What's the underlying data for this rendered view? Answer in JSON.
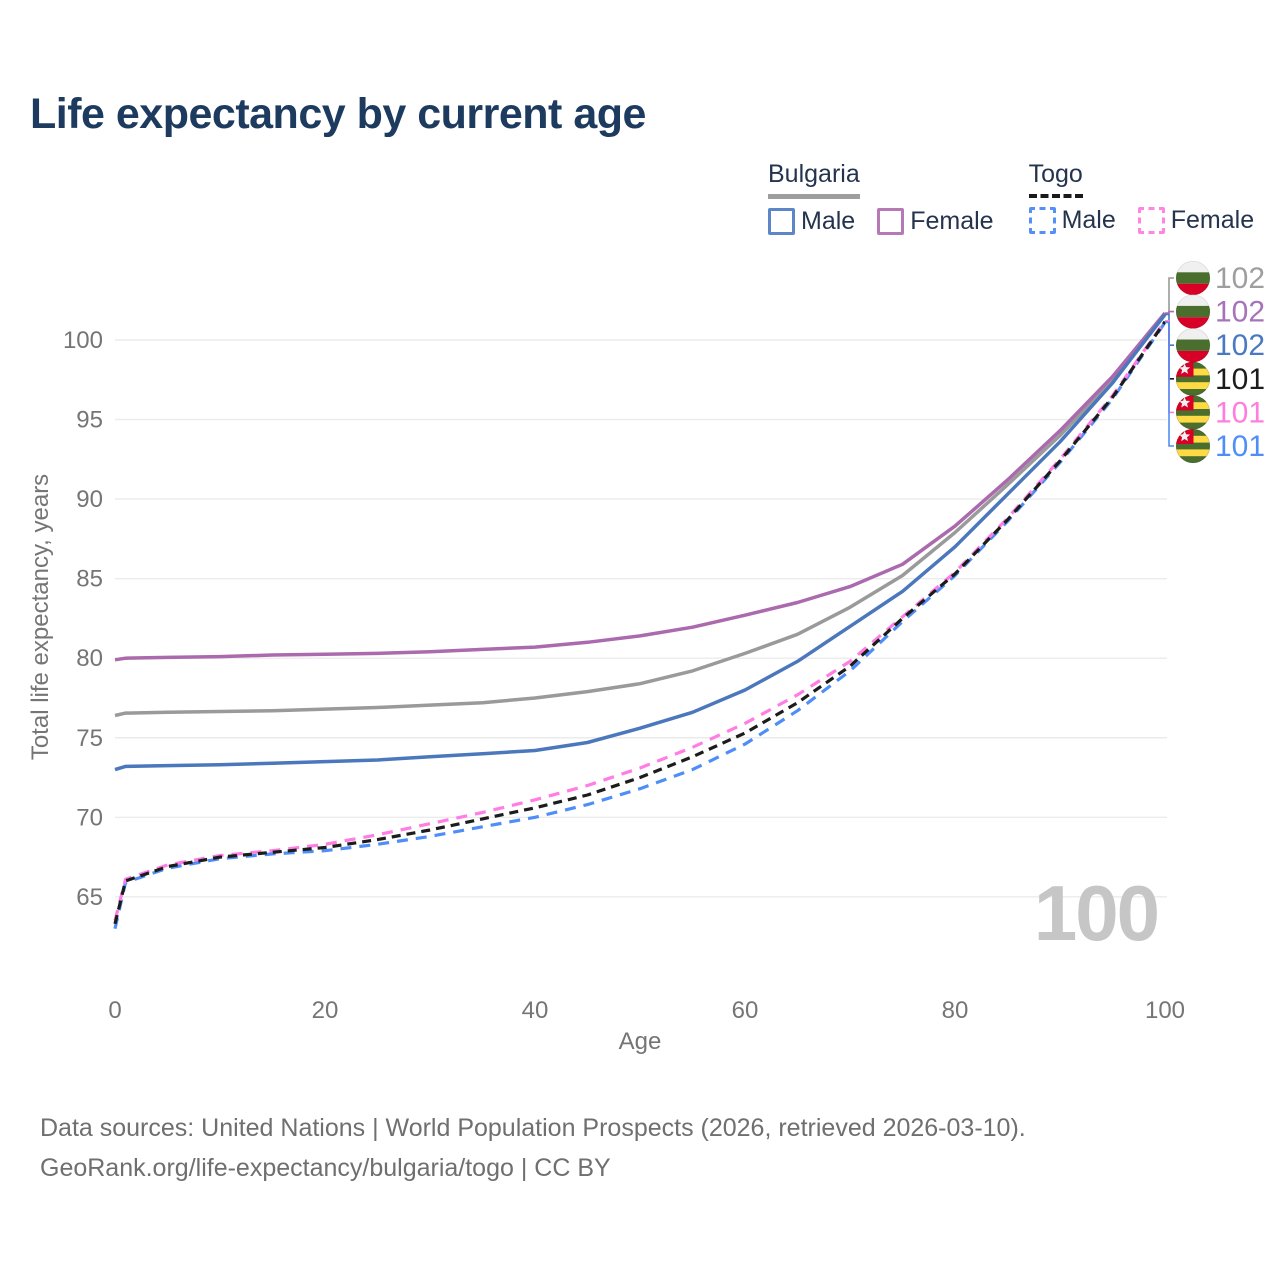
{
  "header": {
    "title": "Life expectancy by current age"
  },
  "legend": {
    "groups": [
      {
        "id": "bulgaria",
        "label": "Bulgaria",
        "line_style": "solid",
        "line_color": "#9e9e9e",
        "items": [
          {
            "id": "bulgaria-male",
            "label": "Male",
            "color": "#5b86c8",
            "dashed": false
          },
          {
            "id": "bulgaria-female",
            "label": "Female",
            "color": "#b579b5",
            "dashed": false
          }
        ]
      },
      {
        "id": "togo",
        "label": "Togo",
        "line_style": "dashed",
        "line_color": "#1a1a1a",
        "items": [
          {
            "id": "togo-male",
            "label": "Male",
            "color": "#5590f7",
            "dashed": true
          },
          {
            "id": "togo-female",
            "label": "Female",
            "color": "#ff85e0",
            "dashed": true
          }
        ]
      }
    ]
  },
  "chart_data": {
    "type": "line",
    "title": "Life expectancy by current age",
    "xlabel": "Age",
    "ylabel": "Total life expectancy, years",
    "xlim": [
      0,
      100
    ],
    "ylim": [
      62.5,
      103
    ],
    "x_ticks": [
      0,
      20,
      40,
      60,
      80,
      100
    ],
    "y_ticks": [
      65,
      70,
      75,
      80,
      85,
      90,
      95,
      100
    ],
    "grid": "horizontal",
    "legend_position": "top-right",
    "watermark": "100",
    "x": [
      0,
      1,
      5,
      10,
      15,
      20,
      25,
      30,
      35,
      40,
      45,
      50,
      55,
      60,
      65,
      70,
      75,
      80,
      85,
      90,
      95,
      100
    ],
    "series": [
      {
        "id": "bulgaria-all",
        "name": "Bulgaria",
        "group": "Bulgaria",
        "color": "#9a9a9a",
        "dash": false,
        "values": [
          76.4,
          76.55,
          76.6,
          76.65,
          76.7,
          76.8,
          76.9,
          77.05,
          77.2,
          77.5,
          77.9,
          78.4,
          79.2,
          80.3,
          81.5,
          83.2,
          85.2,
          87.9,
          90.9,
          94.0,
          97.5,
          101.65
        ]
      },
      {
        "id": "bulgaria-female",
        "name": "Bulgaria Female",
        "group": "Bulgaria",
        "color": "#ab6aad",
        "dash": false,
        "values": [
          79.9,
          80.0,
          80.05,
          80.1,
          80.2,
          80.25,
          80.3,
          80.4,
          80.55,
          80.7,
          81.0,
          81.4,
          81.95,
          82.7,
          83.5,
          84.5,
          85.9,
          88.3,
          91.2,
          94.3,
          97.7,
          101.7
        ]
      },
      {
        "id": "bulgaria-male",
        "name": "Bulgaria Male",
        "group": "Bulgaria",
        "color": "#4b77bc",
        "dash": false,
        "values": [
          73.0,
          73.2,
          73.25,
          73.3,
          73.4,
          73.5,
          73.6,
          73.8,
          74.0,
          74.2,
          74.7,
          75.6,
          76.6,
          78.0,
          79.8,
          82.0,
          84.2,
          87.0,
          90.3,
          93.6,
          97.3,
          101.6
        ]
      },
      {
        "id": "togo-male",
        "name": "Togo Male",
        "group": "Togo",
        "color": "#4f8ef7",
        "dash": true,
        "values": [
          63.0,
          65.9,
          66.8,
          67.4,
          67.7,
          67.9,
          68.3,
          68.8,
          69.4,
          70.0,
          70.8,
          71.8,
          73.0,
          74.6,
          76.7,
          79.2,
          82.3,
          85.2,
          88.6,
          92.3,
          96.3,
          101.1
        ]
      },
      {
        "id": "togo-female",
        "name": "Togo Female",
        "group": "Togo",
        "color": "#ff7de4",
        "dash": true,
        "values": [
          63.5,
          66.1,
          67.0,
          67.6,
          67.9,
          68.3,
          68.9,
          69.6,
          70.3,
          71.1,
          72.0,
          73.1,
          74.4,
          75.9,
          77.7,
          79.8,
          82.6,
          85.4,
          88.8,
          92.5,
          96.5,
          101.2
        ]
      },
      {
        "id": "togo-all",
        "name": "Togo",
        "group": "Togo",
        "color": "#1c1c1c",
        "dash": true,
        "values": [
          63.3,
          66.0,
          66.9,
          67.5,
          67.8,
          68.1,
          68.6,
          69.2,
          69.9,
          70.6,
          71.4,
          72.5,
          73.8,
          75.3,
          77.2,
          79.5,
          82.5,
          85.3,
          88.7,
          92.4,
          96.4,
          101.15
        ]
      }
    ],
    "end_labels": [
      {
        "series": "bulgaria-all",
        "flag": "bulgaria",
        "text": "102",
        "color": "#9e9e9e"
      },
      {
        "series": "bulgaria-female",
        "flag": "bulgaria",
        "text": "102",
        "color": "#a673bb"
      },
      {
        "series": "bulgaria-male",
        "flag": "bulgaria",
        "text": "102",
        "color": "#4a79c4"
      },
      {
        "series": "togo-all",
        "flag": "togo",
        "text": "101",
        "color": "#1c1c1c"
      },
      {
        "series": "togo-female",
        "flag": "togo",
        "text": "101",
        "color": "#ff7ce0"
      },
      {
        "series": "togo-male",
        "flag": "togo",
        "text": "101",
        "color": "#4f8ef7"
      }
    ],
    "flags": {
      "bulgaria": {
        "white": "#f0f0f0",
        "green": "#496e2d",
        "red": "#d80027"
      },
      "togo": {
        "green": "#496e2d",
        "yellow": "#ffda44",
        "red": "#d80027",
        "star": "#f0f0f0"
      }
    },
    "colors": {
      "grid": "#ebebeb",
      "tick_text": "#757575",
      "watermark": "#c6c6c6"
    }
  },
  "footer": {
    "line1": "Data sources: United Nations | World Population Prospects (2026, retrieved 2026-03-10).",
    "line2": "GeoRank.org/life-expectancy/bulgaria/togo | CC BY"
  }
}
